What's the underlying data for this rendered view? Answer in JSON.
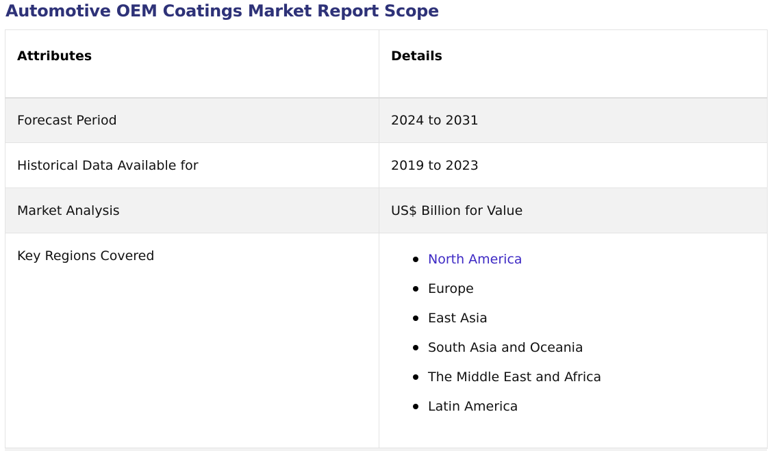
{
  "page": {
    "title": "Automotive OEM Coatings Market Report Scope"
  },
  "table": {
    "headers": {
      "attributes": "Attributes",
      "details": "Details"
    },
    "rows": [
      {
        "attribute": "Forecast Period",
        "detail": "2024 to 2031"
      },
      {
        "attribute": "Historical Data Available for",
        "detail": "2019 to 2023"
      },
      {
        "attribute": "Market Analysis",
        "detail": "US$ Billion for Value"
      }
    ],
    "regions": {
      "attribute": "Key Regions Covered",
      "items": [
        "North America",
        "Europe",
        "East Asia",
        "South Asia and Oceania",
        "The Middle East and Africa",
        "Latin America"
      ]
    }
  },
  "colors": {
    "title": "#2e3278",
    "link": "#3d29c4",
    "row_shade": "#f2f2f2",
    "border": "#e3e3e3"
  }
}
